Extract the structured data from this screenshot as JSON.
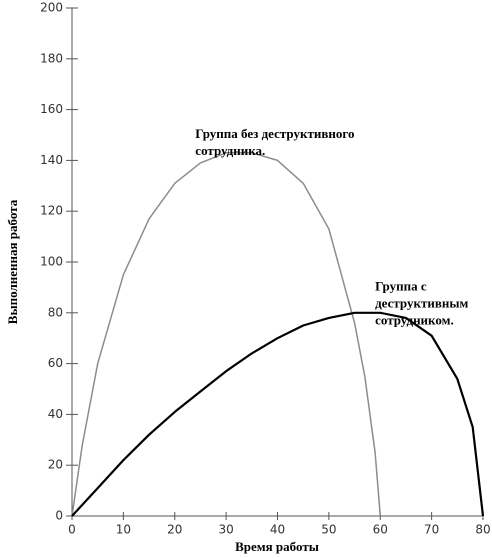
{
  "chart_data": {
    "type": "line",
    "xlabel": "Время работы",
    "ylabel": "Выполненная работа",
    "xlim": [
      0,
      80
    ],
    "xticks": [
      0,
      10,
      20,
      30,
      40,
      50,
      60,
      70,
      80
    ],
    "ylim": [
      0,
      200
    ],
    "yticks": [
      0,
      20,
      40,
      60,
      80,
      100,
      120,
      140,
      160,
      180,
      200
    ],
    "series": [
      {
        "name": "Группа без деструктивного сотрудника.",
        "color": "#8c8c8c",
        "x": [
          0,
          2,
          5,
          10,
          15,
          20,
          25,
          30,
          35,
          40,
          45,
          50,
          55,
          57,
          59,
          60
        ],
        "values": [
          0,
          28,
          60,
          95,
          117,
          131,
          139,
          143,
          143,
          140,
          131,
          113,
          76,
          55,
          25,
          0
        ]
      },
      {
        "name": "Группа с деструктивным сотрудником.",
        "color": "#000000",
        "x": [
          0,
          5,
          10,
          15,
          20,
          25,
          30,
          35,
          40,
          45,
          50,
          55,
          57,
          60,
          65,
          70,
          75,
          78,
          80
        ],
        "values": [
          0,
          11,
          22,
          32,
          41,
          49,
          57,
          64,
          70,
          75,
          78,
          80,
          80,
          80,
          78,
          71,
          54,
          35,
          0
        ]
      }
    ],
    "annotations": [
      {
        "lines": [
          "Группа без деструктивного",
          "сотрудника."
        ],
        "x": 24,
        "y": 150
      },
      {
        "lines": [
          "Группа с",
          "деструктивным",
          "сотрудником."
        ],
        "x": 59,
        "y": 90
      }
    ]
  }
}
